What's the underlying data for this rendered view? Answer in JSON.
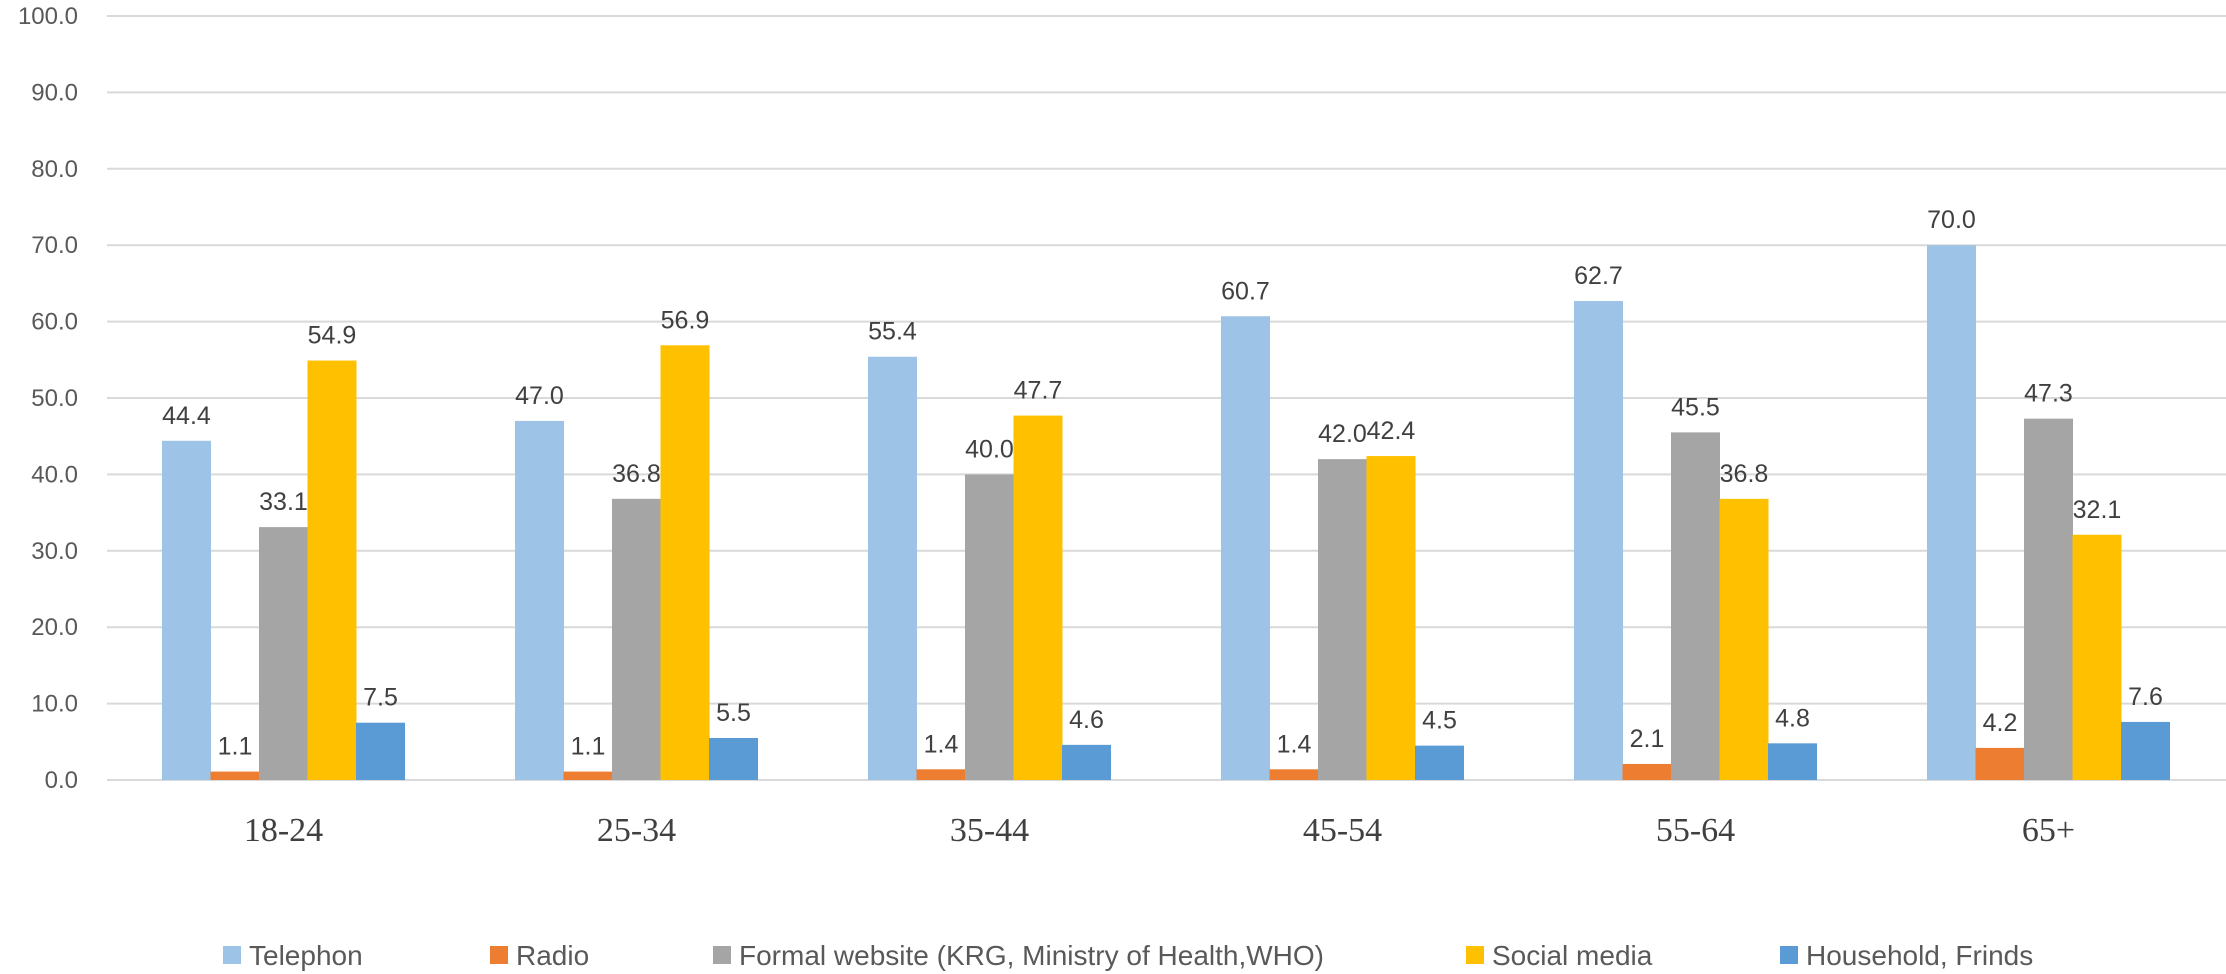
{
  "chart_data": {
    "type": "bar",
    "categories": [
      "18-24",
      "25-34",
      "35-44",
      "45-54",
      "55-64",
      "65+"
    ],
    "series": [
      {
        "name": "Telephon",
        "color": "#9DC3E6",
        "values": [
          44.4,
          47.0,
          55.4,
          60.7,
          62.7,
          70.0
        ]
      },
      {
        "name": "Radio",
        "color": "#ED7D31",
        "values": [
          1.1,
          1.1,
          1.4,
          1.4,
          2.1,
          4.2
        ]
      },
      {
        "name": "Formal website (KRG, Ministry of Health,WHO)",
        "color": "#A5A5A5",
        "values": [
          33.1,
          36.8,
          40.0,
          42.0,
          45.5,
          47.3
        ]
      },
      {
        "name": "Social media",
        "color": "#FFC000",
        "values": [
          54.9,
          56.9,
          47.7,
          42.4,
          36.8,
          32.1
        ]
      },
      {
        "name": "Household,  Frinds",
        "color": "#5B9BD5",
        "values": [
          7.5,
          5.5,
          4.6,
          4.5,
          4.8,
          7.6
        ]
      }
    ],
    "data_labels": [
      [
        "44.4",
        "47.0",
        "55.4",
        "60.7",
        "62.7",
        "70.0"
      ],
      [
        "1.1",
        "1.1",
        "1.4",
        "1.4",
        "2.1",
        "4.2"
      ],
      [
        "33.1",
        "36.8",
        "40.0",
        "42.0",
        "45.5",
        "47.3"
      ],
      [
        "54.9",
        "56.9",
        "47.7",
        "42.4",
        "36.8",
        "32.1"
      ],
      [
        "7.5",
        "5.5",
        "4.6",
        "4.5",
        "4.8",
        "7.6"
      ]
    ],
    "yticks": [
      "0.0",
      "10.0",
      "20.0",
      "30.0",
      "40.0",
      "50.0",
      "60.0",
      "70.0",
      "80.0",
      "90.0",
      "100.0"
    ],
    "ylim": [
      0,
      100
    ],
    "grid": true,
    "legend_position": "bottom",
    "gridline_color": "#D9D9D9"
  }
}
